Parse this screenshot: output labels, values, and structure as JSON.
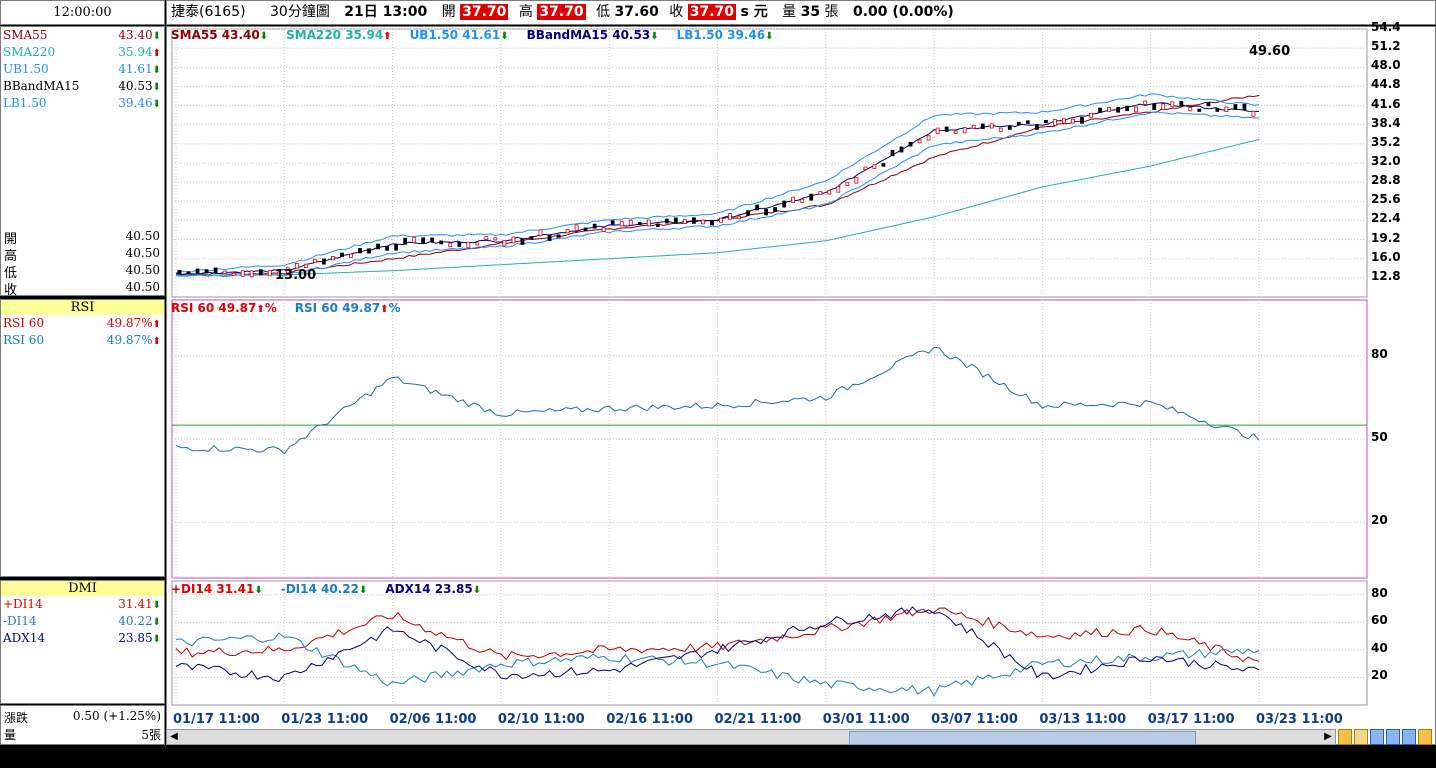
{
  "top_bar": {
    "time": "12:00:00",
    "stock": "捷泰(6165)",
    "period": "30分鐘圖",
    "datetime": "21日 13:00",
    "open_label": "開",
    "open_value": "37.70",
    "high_label": "高",
    "high_value": "37.70",
    "low_label": "低",
    "low_value": "37.60",
    "close_label": "收",
    "close_value": "37.70",
    "unit": "s 元",
    "volume_label": "量",
    "volume_value": "35",
    "volume_unit": "張",
    "change": "0.00 (0.00%)"
  },
  "left_panel": {
    "indicators": [
      {
        "name": "SMA55",
        "value": "43.40",
        "dir": "down",
        "color": "#8b0000"
      },
      {
        "name": "SMA220",
        "value": "35.94",
        "dir": "up",
        "color": "#20b2aa"
      },
      {
        "name": "UB1.50",
        "value": "41.61",
        "dir": "down",
        "color": "#1e90ff"
      },
      {
        "name": "BBandMA15",
        "value": "40.53",
        "dir": "down",
        "color": "#000000"
      },
      {
        "name": "LB1.50",
        "value": "39.46",
        "dir": "down",
        "color": "#1e90ff"
      }
    ],
    "ohlc": [
      {
        "label": "開",
        "value": "40.50"
      },
      {
        "label": "高",
        "value": "40.50"
      },
      {
        "label": "低",
        "value": "40.50"
      },
      {
        "label": "收",
        "value": "40.50"
      }
    ],
    "rsi_title": "RSI",
    "rsi": [
      {
        "name": "RSI 60",
        "value": "49.87%",
        "dir": "up",
        "color": "#e00000"
      },
      {
        "name": "RSI 60",
        "value": "49.87%",
        "dir": "up",
        "color": "#1a7fbf"
      }
    ],
    "dmi_title": "DMI",
    "dmi": [
      {
        "name": "+DI14",
        "value": "31.41",
        "dir": "down",
        "color": "#e00000"
      },
      {
        "name": "-DI14",
        "value": "40.22",
        "dir": "down",
        "color": "#1a7fbf"
      },
      {
        "name": "ADX14",
        "value": "23.85",
        "dir": "down",
        "color": "#000080"
      }
    ],
    "change_label": "漲跌",
    "change_value": "0.50 (+1.25%)",
    "vol_label": "量",
    "vol_value": "5張"
  },
  "price_legend": [
    {
      "text": "SMA55 43.40",
      "dir": "down",
      "color": "#8b0000"
    },
    {
      "text": "SMA220 35.94",
      "dir": "up",
      "color": "#20b2aa"
    },
    {
      "text": "UB1.50 41.61",
      "dir": "down",
      "color": "#1e90ff"
    },
    {
      "text": "BBandMA15 40.53",
      "dir": "down",
      "color": "#000080"
    },
    {
      "text": "LB1.50 39.46",
      "dir": "down",
      "color": "#1e90ff"
    }
  ],
  "rsi_legend": [
    {
      "text": "RSI 60 49.87",
      "dir": "up",
      "color": "#e00000"
    },
    {
      "text": "RSI 60 49.87",
      "dir": "up",
      "color": "#1a7fbf"
    }
  ],
  "dmi_legend": [
    {
      "text": "+DI14 31.41",
      "dir": "down",
      "color": "#e00000"
    },
    {
      "text": "-DI14 40.22",
      "dir": "down",
      "color": "#1a7fbf"
    },
    {
      "text": "ADX14 23.85",
      "dir": "down",
      "color": "#000080"
    }
  ],
  "price_annotations": {
    "high": "49.60",
    "low": "13.00"
  },
  "chart_data": [
    {
      "type": "line",
      "name": "price",
      "x": [
        "01/17 11:00",
        "01/23 11:00",
        "02/06 11:00",
        "02/10 11:00",
        "02/16 11:00",
        "02/21 11:00",
        "03/01 11:00",
        "03/07 11:00",
        "03/13 11:00",
        "03/17 11:00",
        "03/23 11:00"
      ],
      "y_ticks": [
        "54.4",
        "51.2",
        "48.0",
        "44.8",
        "41.6",
        "38.4",
        "35.2",
        "32.0",
        "28.8",
        "25.6",
        "22.4",
        "19.2",
        "16.0",
        "12.8"
      ],
      "ylim": [
        9.6,
        54.4
      ],
      "series": [
        {
          "name": "SMA55",
          "values": [
            13.4,
            13.6,
            16,
            18.5,
            21,
            22.5,
            25,
            33,
            38,
            40.5,
            43.4
          ]
        },
        {
          "name": "SMA220",
          "values": [
            13.2,
            13.3,
            14,
            15,
            16,
            17,
            19,
            23,
            28,
            31.5,
            35.94
          ]
        },
        {
          "name": "BBandMA15",
          "values": [
            13.5,
            14,
            18.5,
            19,
            21.5,
            22.5,
            27,
            37.5,
            38.5,
            42,
            40.53
          ]
        },
        {
          "name": "UB1.50",
          "values": [
            13.8,
            15,
            19.8,
            20,
            22.5,
            23.5,
            29,
            40,
            40.5,
            43.5,
            41.61
          ]
        },
        {
          "name": "LB1.50",
          "values": [
            13.2,
            13.2,
            17,
            18,
            20.5,
            21.5,
            25,
            35,
            37,
            40.5,
            39.46
          ]
        }
      ]
    },
    {
      "type": "line",
      "name": "RSI",
      "x": [
        "01/17 11:00",
        "01/23 11:00",
        "02/06 11:00",
        "02/10 11:00",
        "02/16 11:00",
        "02/21 11:00",
        "03/01 11:00",
        "03/07 11:00",
        "03/13 11:00",
        "03/17 11:00",
        "03/23 11:00"
      ],
      "y_ticks": [
        "80",
        "50",
        "20"
      ],
      "ylim": [
        0,
        100
      ],
      "reference_line": 55,
      "series": [
        {
          "name": "RSI 60",
          "values": [
            47,
            46,
            72,
            59,
            61,
            62,
            65,
            83,
            62,
            63,
            50
          ]
        }
      ]
    },
    {
      "type": "line",
      "name": "DMI",
      "x": [
        "01/17 11:00",
        "01/23 11:00",
        "02/06 11:00",
        "02/10 11:00",
        "02/16 11:00",
        "02/21 11:00",
        "03/01 11:00",
        "03/07 11:00",
        "03/13 11:00",
        "03/17 11:00",
        "03/23 11:00"
      ],
      "y_ticks": [
        "80",
        "60",
        "40",
        "20"
      ],
      "ylim": [
        0,
        90
      ],
      "series": [
        {
          "name": "+DI14",
          "values": [
            38,
            40,
            65,
            35,
            40,
            42,
            55,
            70,
            50,
            55,
            31
          ]
        },
        {
          "name": "-DI14",
          "values": [
            45,
            50,
            15,
            30,
            35,
            30,
            15,
            10,
            30,
            35,
            40
          ]
        },
        {
          "name": "ADX14",
          "values": [
            28,
            20,
            55,
            22,
            25,
            40,
            60,
            70,
            20,
            35,
            24
          ]
        }
      ]
    }
  ]
}
